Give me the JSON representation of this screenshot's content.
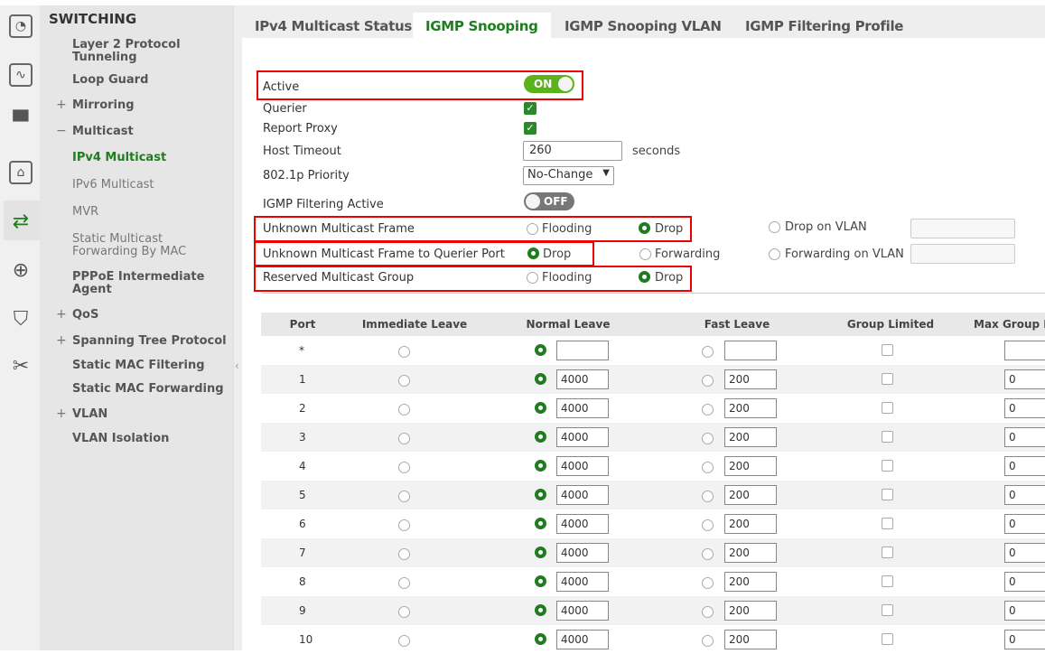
{
  "rail_icons": [
    "dashboard-icon",
    "monitor-wave-icon",
    "display-icon",
    "network-port-icon",
    "switching-icon",
    "globe-icon",
    "shield-icon",
    "tools-icon"
  ],
  "sidebar": {
    "title": "SWITCHING",
    "items": [
      {
        "label": "Layer 2 Protocol Tunneling"
      },
      {
        "label": "Loop Guard"
      },
      {
        "label": "Mirroring",
        "expander": "+"
      },
      {
        "label": "Multicast",
        "expander": "−"
      },
      {
        "label": "IPv4 Multicast"
      },
      {
        "label": "IPv6 Multicast"
      },
      {
        "label": "MVR"
      },
      {
        "label": "Static Multicast Forwarding By MAC"
      },
      {
        "label": "PPPoE Intermediate Agent"
      },
      {
        "label": "QoS",
        "expander": "+"
      },
      {
        "label": "Spanning Tree Protocol",
        "expander": "+"
      },
      {
        "label": "Static MAC Filtering"
      },
      {
        "label": "Static MAC Forwarding"
      },
      {
        "label": "VLAN",
        "expander": "+"
      },
      {
        "label": "VLAN Isolation"
      }
    ]
  },
  "tabs": [
    {
      "label": "IPv4 Multicast Status"
    },
    {
      "label": "IGMP Snooping",
      "active": true
    },
    {
      "label": "IGMP Snooping VLAN"
    },
    {
      "label": "IGMP Filtering Profile"
    }
  ],
  "form": {
    "active": {
      "label": "Active",
      "state": "ON"
    },
    "querier": {
      "label": "Querier",
      "checked": true
    },
    "report_proxy": {
      "label": "Report Proxy",
      "checked": true
    },
    "host_timeout": {
      "label": "Host Timeout",
      "value": "260",
      "unit": "seconds"
    },
    "priority": {
      "label": "802.1p Priority",
      "value": "No-Change"
    },
    "filtering_active": {
      "label": "IGMP Filtering Active",
      "state": "OFF"
    },
    "unknown_frame": {
      "label": "Unknown Multicast Frame",
      "opt1": "Flooding",
      "opt2": "Drop",
      "opt3": "Drop on VLAN",
      "selected": "Drop"
    },
    "querier_port": {
      "label": "Unknown Multicast Frame to Querier Port",
      "opt1": "Drop",
      "opt2": "Forwarding",
      "opt3": "Forwarding on VLAN",
      "selected": "Drop"
    },
    "reserved_group": {
      "label": "Reserved Multicast Group",
      "opt1": "Flooding",
      "opt2": "Drop",
      "selected": "Drop"
    }
  },
  "table": {
    "headers": [
      "Port",
      "Immediate Leave",
      "Normal Leave",
      "Fast Leave",
      "Group Limited",
      "Max Group Num."
    ],
    "rows": [
      {
        "port": "*",
        "normal": "",
        "fast": "",
        "max": ""
      },
      {
        "port": "1",
        "normal": "4000",
        "fast": "200",
        "max": "0"
      },
      {
        "port": "2",
        "normal": "4000",
        "fast": "200",
        "max": "0"
      },
      {
        "port": "3",
        "normal": "4000",
        "fast": "200",
        "max": "0"
      },
      {
        "port": "4",
        "normal": "4000",
        "fast": "200",
        "max": "0"
      },
      {
        "port": "5",
        "normal": "4000",
        "fast": "200",
        "max": "0"
      },
      {
        "port": "6",
        "normal": "4000",
        "fast": "200",
        "max": "0"
      },
      {
        "port": "7",
        "normal": "4000",
        "fast": "200",
        "max": "0"
      },
      {
        "port": "8",
        "normal": "4000",
        "fast": "200",
        "max": "0"
      },
      {
        "port": "9",
        "normal": "4000",
        "fast": "200",
        "max": "0"
      },
      {
        "port": "10",
        "normal": "4000",
        "fast": "200",
        "max": "0"
      }
    ]
  },
  "colors": {
    "accent": "#1e7d1e",
    "toggle_on": "#5cb21c",
    "highlight": "#e00000"
  }
}
